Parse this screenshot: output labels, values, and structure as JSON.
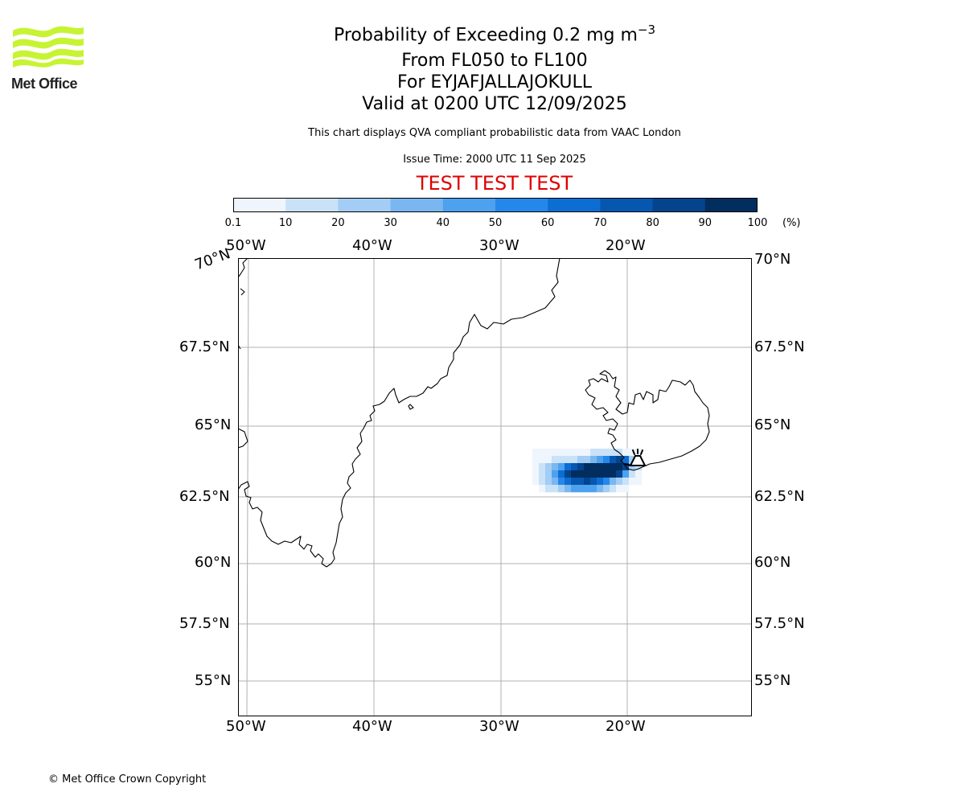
{
  "logo": {
    "text": "Met Office",
    "brand_color": "#c6f432",
    "icon": "met-office-wave-logo-icon"
  },
  "header": {
    "title_prefix": "Probability of Exceeding 0.2 mg m",
    "title_superscript": "−3",
    "level_range": "From FL050 to FL100",
    "volcano": "For EYJAFJALLAJOKULL",
    "valid_time": "Valid at 0200 UTC 12/09/2025",
    "data_note": "This chart displays QVA compliant probabilistic data from VAAC London",
    "issue_time": "Issue Time: 2000 UTC 11 Sep 2025",
    "test_banner": "TEST TEST TEST",
    "test_color": "#e00000"
  },
  "colorbar": {
    "ticks": [
      "0.1",
      "10",
      "20",
      "30",
      "40",
      "50",
      "60",
      "70",
      "80",
      "90",
      "100"
    ],
    "unit": "(%)",
    "colors": [
      "#eef5fd",
      "#c9e2f8",
      "#a3cdf4",
      "#7ab7f0",
      "#4ea1ee",
      "#2388e9",
      "#0c6dd2",
      "#0657b0",
      "#04448c",
      "#022d5f"
    ]
  },
  "map": {
    "lon_labels": [
      "50°W",
      "40°W",
      "30°W",
      "20°W"
    ],
    "lat_labels": [
      "70°N",
      "67.5°N",
      "65°N",
      "62.5°N",
      "60°N",
      "57.5°N",
      "55°N"
    ],
    "grid_color": "#b0b0b0",
    "volcano_icon": "volcano-icon",
    "ash_levels_pct": [
      [
        5,
        5,
        5,
        5,
        5,
        5,
        5,
        5,
        5,
        15,
        15,
        15,
        15,
        15,
        5,
        5,
        5
      ],
      [
        5,
        5,
        5,
        15,
        15,
        15,
        15,
        25,
        25,
        35,
        45,
        55,
        75,
        85,
        65,
        25,
        15
      ],
      [
        5,
        15,
        25,
        35,
        45,
        65,
        75,
        85,
        95,
        95,
        95,
        95,
        95,
        95,
        85,
        25,
        15
      ],
      [
        5,
        15,
        25,
        45,
        65,
        85,
        95,
        95,
        95,
        95,
        95,
        95,
        95,
        85,
        45,
        15,
        5
      ],
      [
        5,
        15,
        25,
        35,
        55,
        65,
        75,
        75,
        85,
        75,
        65,
        55,
        35,
        25,
        15,
        5,
        5
      ],
      [
        0,
        5,
        15,
        15,
        25,
        35,
        45,
        45,
        45,
        45,
        35,
        25,
        15,
        5,
        5,
        0,
        0
      ]
    ]
  },
  "footer": {
    "copyright": "© Met Office Crown Copyright"
  }
}
